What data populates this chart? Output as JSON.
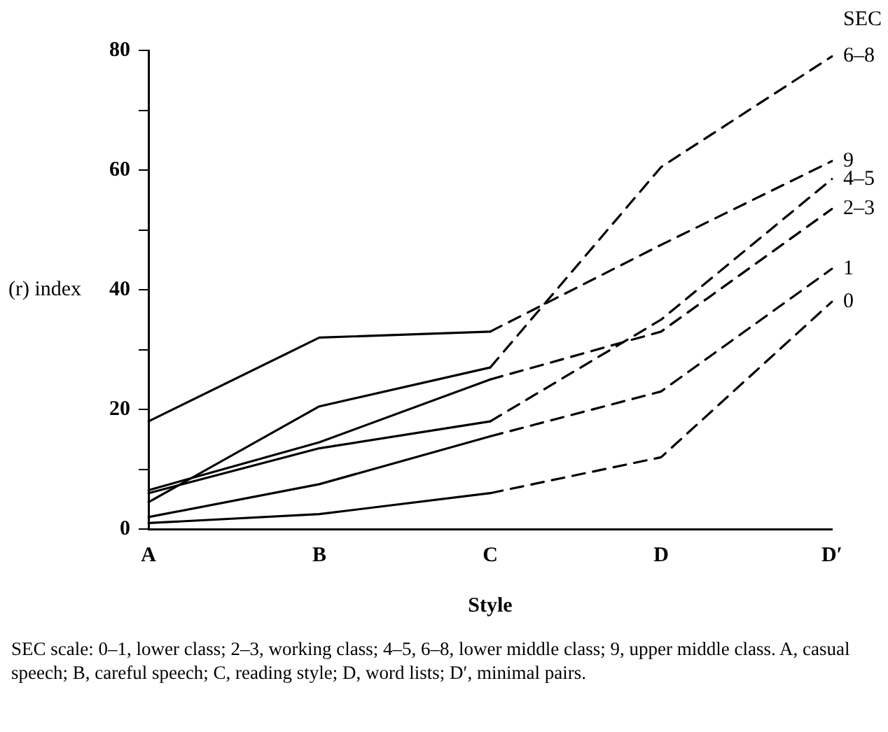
{
  "chart_data": {
    "type": "line",
    "xlabel": "Style",
    "ylabel": "(r) index",
    "legend_title": "SEC",
    "categories": [
      "A",
      "B",
      "C",
      "D",
      "D′"
    ],
    "ylim": [
      0,
      80
    ],
    "yticks": [
      0,
      {
        "value": 10,
        "label": null
      },
      20,
      {
        "value": 30,
        "label": null
      },
      40,
      {
        "value": 50,
        "label": null
      },
      60,
      {
        "value": 70,
        "label": null
      },
      80
    ],
    "grid": false,
    "legend": false,
    "marker": "none",
    "series": [
      {
        "color": "#000000",
        "line_style": "solid",
        "values": [
          18,
          32,
          33,
          null,
          null
        ]
      },
      {
        "name": "9",
        "color": "#000000",
        "line_style": "dashed",
        "values": [
          null,
          null,
          33,
          47.5,
          61.5
        ]
      },
      {
        "color": "#000000",
        "line_style": "solid",
        "values": [
          4.5,
          20.5,
          27,
          null,
          null
        ]
      },
      {
        "name": "6–8",
        "color": "#000000",
        "line_style": "dashed",
        "values": [
          null,
          null,
          27,
          60.5,
          79
        ]
      },
      {
        "color": "#000000",
        "line_style": "solid",
        "values": [
          6,
          13.5,
          18,
          null,
          null
        ]
      },
      {
        "name": "4–5",
        "color": "#000000",
        "line_style": "dashed",
        "values": [
          null,
          null,
          18,
          35,
          58.5
        ]
      },
      {
        "color": "#000000",
        "line_style": "solid",
        "values": [
          6.5,
          14.5,
          25,
          null,
          null
        ]
      },
      {
        "name": "2–3",
        "color": "#000000",
        "line_style": "dashed",
        "values": [
          null,
          null,
          25,
          33,
          53.5
        ]
      },
      {
        "color": "#000000",
        "line_style": "solid",
        "values": [
          2,
          7.5,
          15.5,
          null,
          null
        ]
      },
      {
        "name": "1",
        "color": "#000000",
        "line_style": "dashed",
        "values": [
          null,
          null,
          15.5,
          23,
          43.5
        ]
      },
      {
        "color": "#000000",
        "line_style": "solid",
        "values": [
          1,
          2.5,
          6,
          null,
          null
        ]
      },
      {
        "name": "0",
        "color": "#000000",
        "line_style": "dashed",
        "values": [
          null,
          null,
          6,
          12,
          38
        ]
      }
    ],
    "annotations": [
      "SEC scale: 0–1, lower class; 2–3, working class; 4–5, 6–8, lower middle class; 9, upper middle class. A, casual speech; B, careful speech; C, reading style; D, word lists; D′, minimal pairs."
    ]
  }
}
